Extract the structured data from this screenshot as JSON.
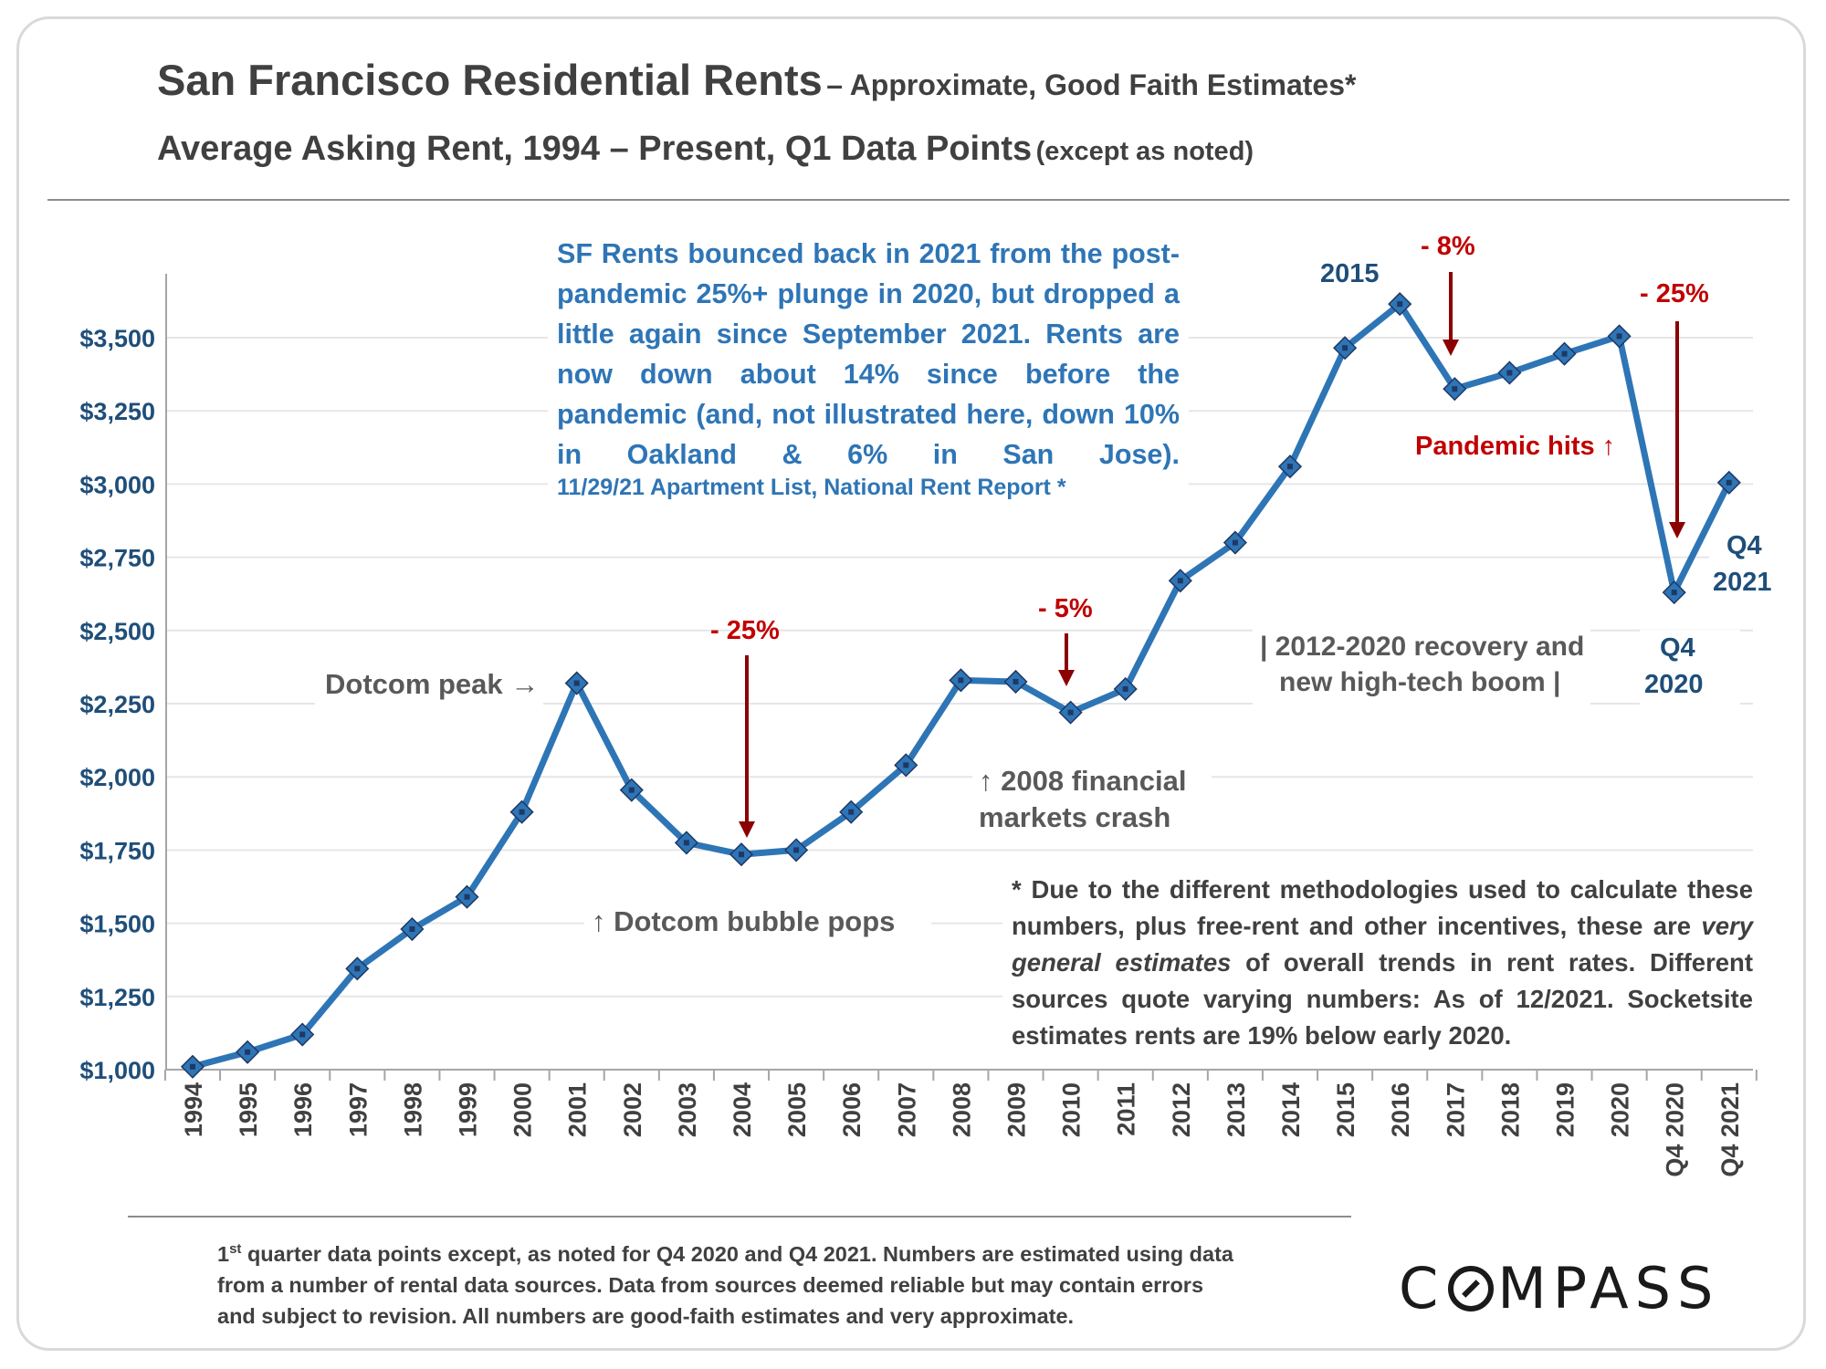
{
  "title": {
    "main": "San Francisco Residential Rents",
    "suffix": "– Approximate, Good Faith Estimates*"
  },
  "subtitle": {
    "main": "Average Asking Rent, 1994 – Present, Q1 Data Points",
    "note": "(except as noted)"
  },
  "callout": {
    "text": "SF Rents bounced back in 2021 from the post-pandemic 25%+ plunge in 2020, but dropped a little again since September 2021. Rents are now down about 14% since before the pandemic (and, not illustrated here, down 10% in Oakland & 6% in San Jose).",
    "source": "11/29/21 Apartment List, National Rent Report *"
  },
  "annotations": {
    "dotcom_peak": "Dotcom peak →",
    "dotcom_pops": "↑ Dotcom bubble pops",
    "drop_2004": "- 25%",
    "drop_2010": "- 5%",
    "crash_line1": "↑ 2008 financial",
    "crash_line2": "markets crash",
    "recovery_line1": "| 2012-2020 recovery and",
    "recovery_line2": "new high-tech boom |",
    "label_2015": "2015",
    "drop_2017": "- 8%",
    "drop_2020": "- 25%",
    "pandemic": "Pandemic hits ↑",
    "q4_2020_line1": "Q4",
    "q4_2020_line2": "2020",
    "q4_2021_line1": "Q4",
    "q4_2021_line2": "2021"
  },
  "footnote": {
    "part1": "* Due to the different methodologies used to calculate these numbers, plus free-rent and other incentives, these are",
    "emphasis": "very general estimates",
    "part2": "of overall trends in rent rates. Different sources quote varying numbers: As of 12/2021. Socketsite estimates rents are 19% below early 2020."
  },
  "bottom_note": {
    "prefix": "1",
    "sup": "st",
    "text": "quarter data points except, as noted for Q4 2020 and Q4 2021. Numbers are estimated using data from a number of rental data sources. Data from sources deemed reliable but may contain errors and subject to revision. All numbers are good-faith estimates and very approximate."
  },
  "logo": {
    "before": "C",
    "after": "MPASS"
  },
  "colors": {
    "line": "#2e75b6",
    "marker": "#2e75b6",
    "marker_center": "#1f3864",
    "annotation_red": "#c00000",
    "arrow_red": "#8b0000",
    "label_navy": "#1f4e79",
    "text_gray": "#404040"
  },
  "chart_data": {
    "type": "line",
    "title": "San Francisco Residential Rents",
    "xlabel": "",
    "ylabel": "",
    "categories": [
      "1994",
      "1995",
      "1996",
      "1997",
      "1998",
      "1999",
      "2000",
      "2001",
      "2002",
      "2003",
      "2004",
      "2005",
      "2006",
      "2007",
      "2008",
      "2009",
      "2010",
      "2011",
      "2012",
      "2013",
      "2014",
      "2015",
      "2016",
      "2017",
      "2018",
      "2019",
      "2020",
      "Q4 2020",
      "Q4 2021"
    ],
    "series": [
      {
        "name": "",
        "values": [
          1010,
          1060,
          1120,
          1345,
          1480,
          1590,
          1880,
          2320,
          1955,
          1775,
          1735,
          1750,
          1880,
          2040,
          2330,
          2325,
          2220,
          2300,
          2670,
          2800,
          3060,
          3465,
          3615,
          3325,
          3380,
          3445,
          3505,
          2630,
          3005
        ]
      }
    ],
    "ylim": [
      1000,
      3750
    ],
    "yticks": [
      1000,
      1250,
      1500,
      1750,
      2000,
      2250,
      2500,
      2750,
      3000,
      3250,
      3500
    ],
    "ytick_labels": [
      "$1,000",
      "$1,250",
      "$1,500",
      "$1,750",
      "$2,000",
      "$2,250",
      "$2,500",
      "$2,750",
      "$3,000",
      "$3,250",
      "$3,500"
    ],
    "grid": true,
    "legend": "none"
  }
}
